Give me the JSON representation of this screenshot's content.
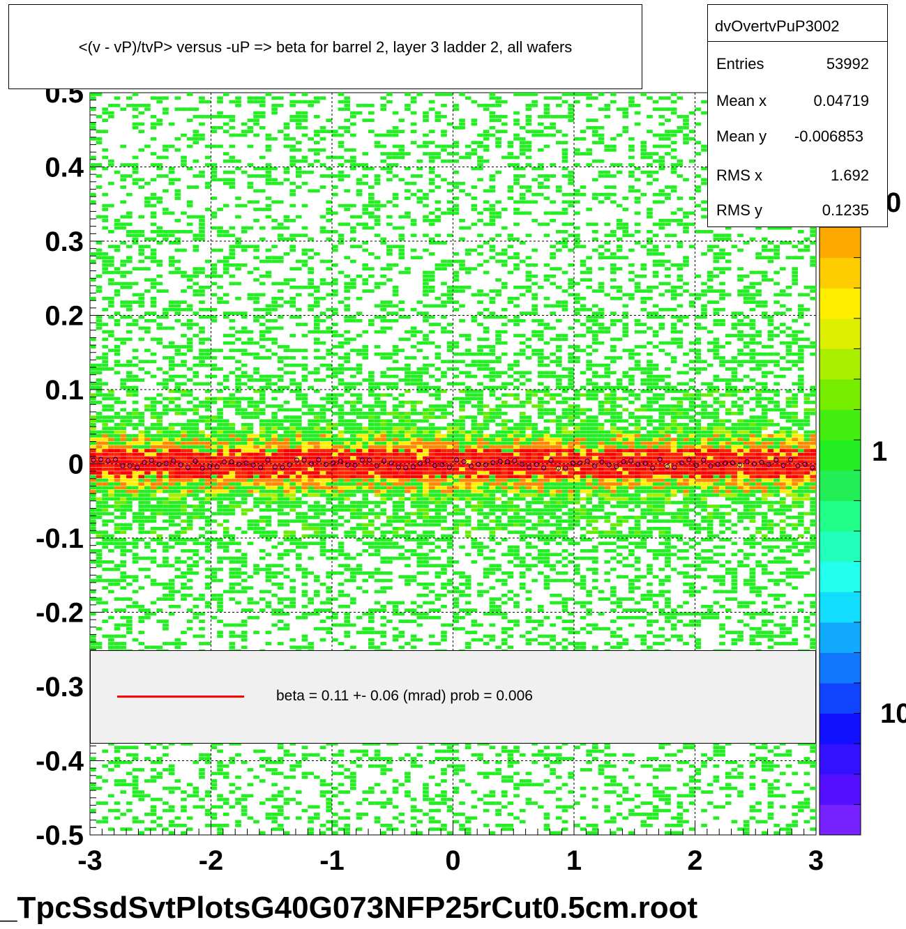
{
  "title": "<(v - vP)/tvP> versus  -uP => beta for barrel 2, layer 3 ladder 2, all wafers",
  "stats": {
    "name": "dvOvertvPuP3002",
    "rows": [
      {
        "label": "Entries",
        "value": "53992"
      },
      {
        "label": "Mean x",
        "value": "0.04719"
      },
      {
        "label": "Mean y",
        "value": "-0.006853"
      },
      {
        "label": "RMS x",
        "value": "1.692"
      },
      {
        "label": "RMS y",
        "value": "0.1235"
      }
    ]
  },
  "legend": {
    "text": "beta =    0.11 +-  0.06 (mrad) prob = 0.006",
    "line_color": "#ff0000"
  },
  "filename": "_TpcSsdSvtPlotsG40G073NFP25rCut0.5cm.root",
  "palette_labels": [
    "0",
    "1",
    "10"
  ],
  "chart_data": {
    "type": "heatmap",
    "title": "<(v - vP)/tvP> versus  -uP => beta for barrel 2, layer 3 ladder 2, all wafers",
    "xlim": [
      -3,
      3
    ],
    "ylim": [
      -0.5,
      0.5
    ],
    "x_ticks": [
      "-3",
      "-2",
      "-1",
      "0",
      "1",
      "2",
      "3"
    ],
    "y_ticks": [
      "0.5",
      "0.4",
      "0.3",
      "0.2",
      "0.1",
      "0",
      "-0.1",
      "-0.2",
      "-0.3",
      "-0.4",
      "-0.5"
    ],
    "grid": true,
    "log_z": true,
    "band_center_y": 0.0,
    "band_sigma_y": 0.02,
    "fit_slope_mrad": 0.11,
    "fit_slope_err_mrad": 0.06,
    "fit_prob": 0.006,
    "colors": {
      "low": "#22ee22",
      "mid": "#ffee00",
      "high": "#ff2200",
      "peak": "#ff0000",
      "points": "#ff00ff"
    }
  }
}
